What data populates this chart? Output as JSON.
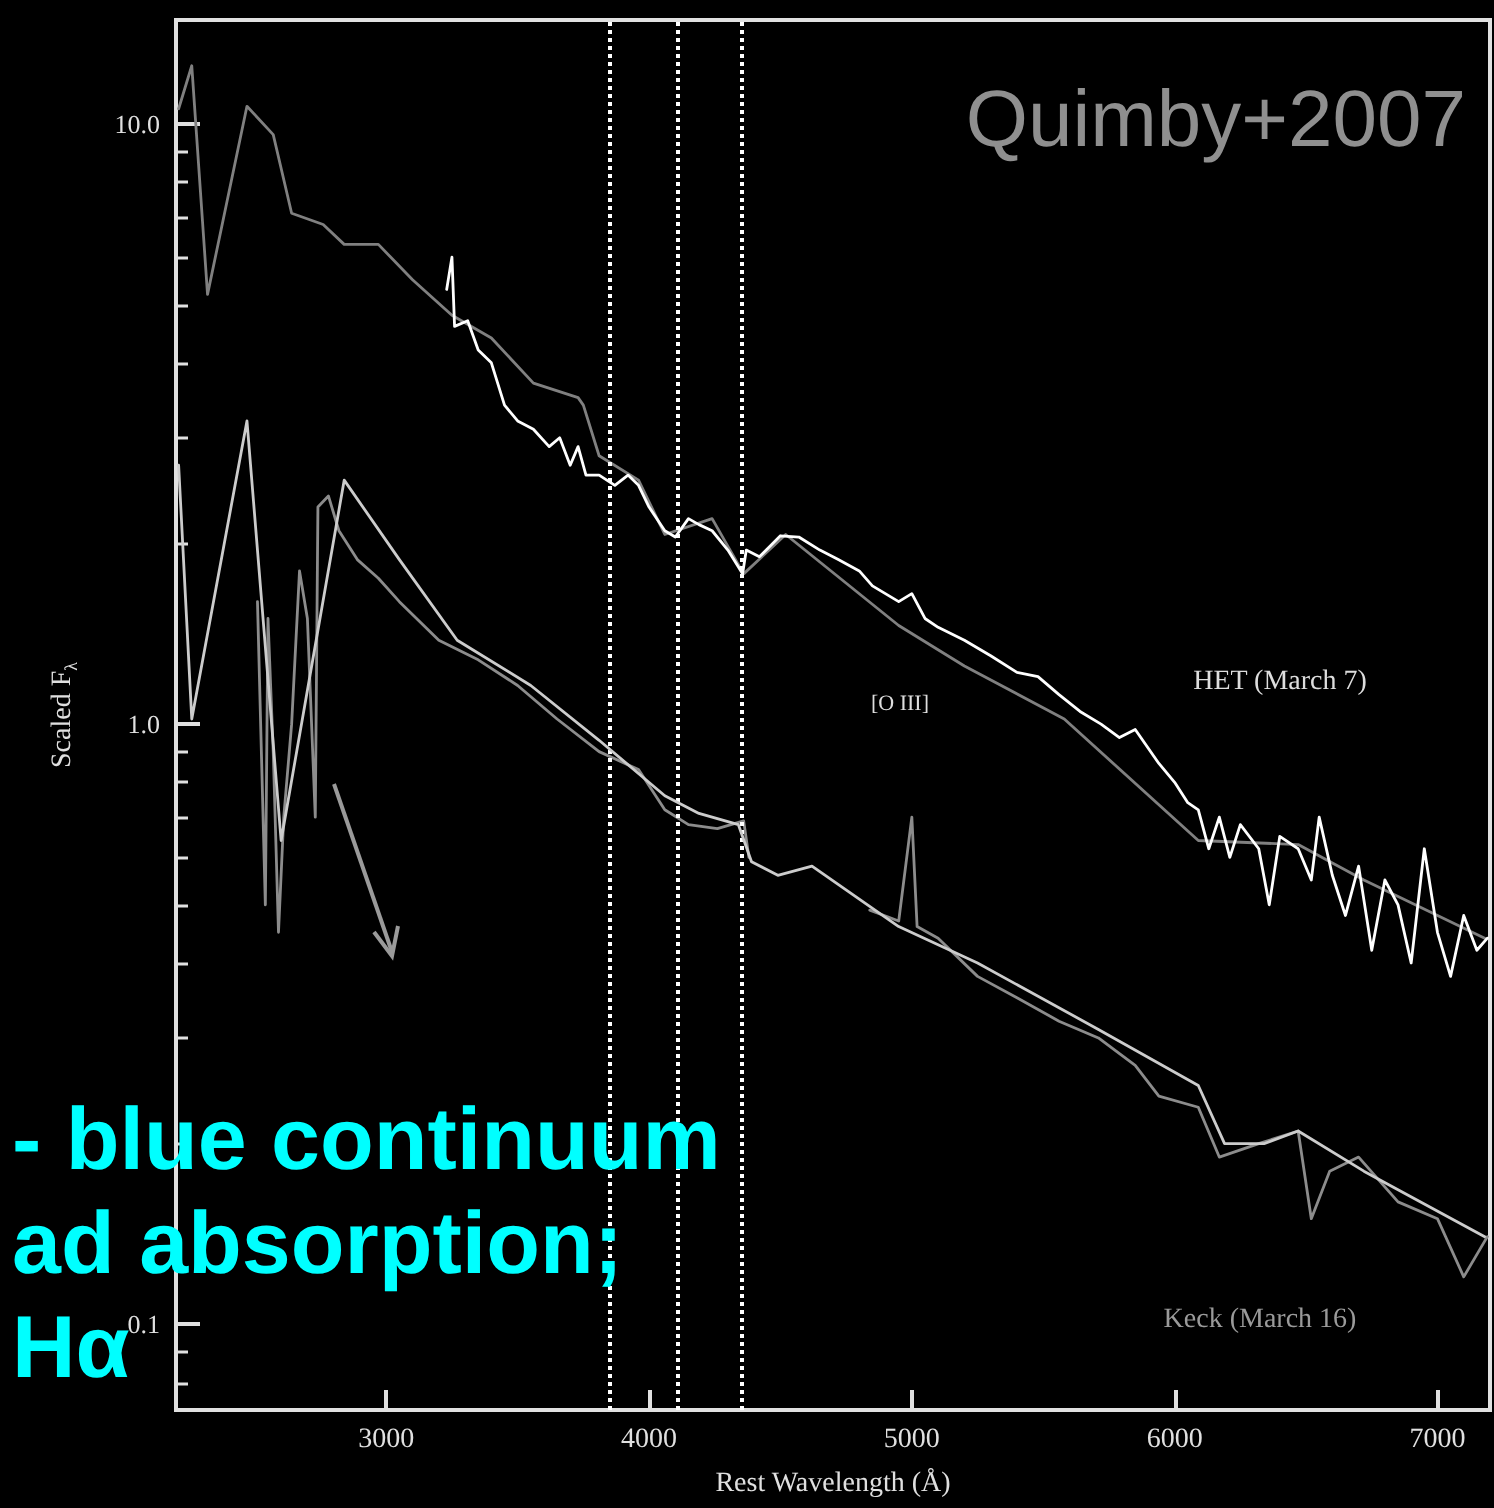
{
  "chart_data": {
    "type": "line",
    "xlabel": "Rest Wavelength (Å)",
    "ylabel": "Scaled F$_{λ}$",
    "log": "y",
    "grid": false,
    "marker": "none",
    "line_style": "solid",
    "xlim": [
      2200,
      7200
    ],
    "xticks": [
      3000,
      4000,
      5000,
      6000,
      7000
    ],
    "ylim": [
      0.072,
      14.9
    ],
    "yticks": [
      {
        "value": 0.1,
        "label": "0.1"
      },
      {
        "value": 1,
        "label": "1.0"
      },
      {
        "value": 10,
        "label": "10.0"
      }
    ],
    "series": [
      {
        "color": "#808080",
        "x": [
          2210,
          2260,
          2320,
          2470,
          2570,
          2640,
          2760,
          2840,
          2970,
          3100,
          3250,
          3400,
          3560,
          3730,
          3750,
          3810,
          3960,
          4060,
          4240,
          4360,
          4520,
          4950,
          5200,
          5580,
          6090,
          6470,
          6720,
          7180
        ],
        "values": [
          10.6,
          12.5,
          5.2,
          10.7,
          9.6,
          7.1,
          6.8,
          6.3,
          6.3,
          5.5,
          4.8,
          4.4,
          3.7,
          3.5,
          3.4,
          2.8,
          2.55,
          2.07,
          2.2,
          1.78,
          2.07,
          1.46,
          1.25,
          1.02,
          0.64,
          0.63,
          0.55,
          0.44
        ]
      },
      {
        "color": "#ffffff",
        "x": [
          3230,
          3250,
          3260,
          3310,
          3350,
          3400,
          3450,
          3500,
          3560,
          3620,
          3660,
          3700,
          3730,
          3760,
          3810,
          3870,
          3920,
          3960,
          4000,
          4060,
          4100,
          4150,
          4190,
          4240,
          4300,
          4356,
          4370,
          4420,
          4500,
          4570,
          4650,
          4720,
          4800,
          4850,
          4950,
          5000,
          5050,
          5100,
          5200,
          5300,
          5400,
          5480,
          5560,
          5640,
          5720,
          5790,
          5850,
          5940,
          6000,
          6050,
          6090,
          6130,
          6170,
          6210,
          6250,
          6320,
          6360,
          6400,
          6470,
          6520,
          6550,
          6600,
          6650,
          6700,
          6750,
          6800,
          6850,
          6900,
          6950,
          7000,
          7050,
          7100,
          7150,
          7190
        ],
        "values": [
          5.3,
          6.0,
          4.6,
          4.7,
          4.2,
          4.0,
          3.4,
          3.2,
          3.1,
          2.9,
          3.0,
          2.7,
          2.9,
          2.6,
          2.6,
          2.5,
          2.6,
          2.5,
          2.3,
          2.1,
          2.05,
          2.2,
          2.15,
          2.1,
          1.95,
          1.78,
          1.95,
          1.9,
          2.06,
          2.05,
          1.95,
          1.88,
          1.8,
          1.7,
          1.6,
          1.65,
          1.5,
          1.45,
          1.38,
          1.3,
          1.22,
          1.2,
          1.12,
          1.05,
          1.0,
          0.95,
          0.98,
          0.86,
          0.8,
          0.74,
          0.72,
          0.62,
          0.7,
          0.6,
          0.68,
          0.62,
          0.5,
          0.65,
          0.62,
          0.55,
          0.7,
          0.56,
          0.48,
          0.58,
          0.42,
          0.55,
          0.5,
          0.4,
          0.62,
          0.45,
          0.38,
          0.48,
          0.42,
          0.44
        ]
      },
      {
        "color": "#8c8c8c",
        "x": [
          2510,
          2540,
          2550,
          2570,
          2590,
          2610,
          2640,
          2670,
          2700,
          2730,
          2740,
          2780,
          2820,
          2890,
          2970,
          3050,
          3200,
          3350,
          3500,
          3650,
          3810,
          3960,
          4060,
          4150,
          4260,
          4360,
          4380,
          4600,
          4840,
          4950,
          5000,
          5020,
          5100,
          5250,
          5400,
          5560,
          5710,
          5850,
          5940,
          6090,
          6170,
          6320,
          6470,
          6520,
          6590,
          6700,
          6850,
          7000,
          7100,
          7190
        ],
        "values": [
          1.6,
          0.5,
          1.5,
          0.9,
          0.45,
          0.7,
          1.0,
          1.8,
          1.5,
          0.7,
          2.3,
          2.4,
          2.1,
          1.88,
          1.75,
          1.6,
          1.38,
          1.28,
          1.16,
          1.02,
          0.9,
          0.84,
          0.72,
          0.68,
          0.67,
          0.69,
          0.6,
          null,
          0.49,
          0.47,
          0.7,
          0.46,
          0.44,
          0.38,
          0.35,
          0.32,
          0.3,
          0.27,
          0.24,
          0.23,
          0.19,
          0.2,
          0.21,
          0.15,
          0.18,
          0.19,
          0.16,
          0.15,
          0.12,
          0.14
        ]
      },
      {
        "color": "#cccccc",
        "x": [
          2210,
          2260,
          2470,
          2600,
          2840,
          3050,
          3270,
          3550,
          3810,
          4060,
          4190,
          4340,
          4390,
          4490,
          4620,
          4950,
          5250,
          5710,
          6090,
          6190,
          6340,
          6470,
          6720,
          7180
        ],
        "values": [
          2.7,
          1.02,
          3.2,
          0.64,
          2.55,
          1.88,
          1.38,
          1.16,
          0.94,
          0.76,
          0.71,
          0.68,
          0.59,
          0.56,
          0.58,
          0.46,
          0.4,
          0.31,
          0.25,
          0.2,
          0.2,
          0.21,
          0.18,
          0.14
        ]
      }
    ],
    "ref_lines": [
      {
        "axis": "x",
        "value": 3850,
        "color": "#ffffff",
        "line_style": "dotted"
      },
      {
        "axis": "x",
        "value": 4110,
        "color": "#ffffff",
        "line_style": "dotted"
      },
      {
        "axis": "x",
        "value": 4350,
        "color": "#ffffff",
        "line_style": "dotted"
      }
    ],
    "annotations": [
      "Quimby+2007",
      "- blue continuum",
      "ad absorption;",
      "Hα",
      "HET (March 7)",
      "Keck (March 16)",
      "[O III]"
    ]
  }
}
